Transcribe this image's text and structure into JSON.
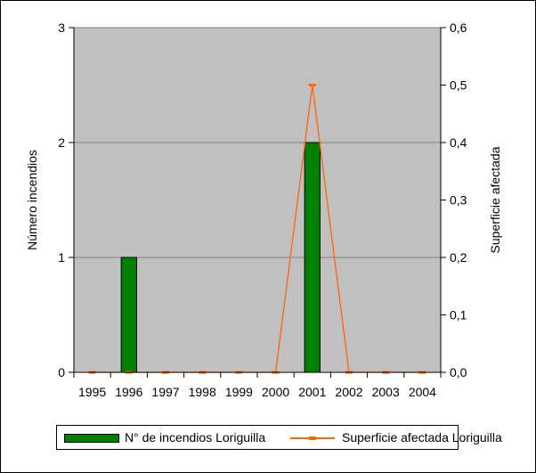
{
  "chart_data": {
    "type": "bar",
    "categories": [
      "1995",
      "1996",
      "1997",
      "1998",
      "1999",
      "2000",
      "2001",
      "2002",
      "2003",
      "2004"
    ],
    "series": [
      {
        "name": "N° de incendios Loriguilla",
        "type": "bar",
        "axis": "left",
        "color": "#008000",
        "values": [
          0,
          1,
          0,
          0,
          0,
          0,
          2,
          0,
          0,
          0
        ]
      },
      {
        "name": "Superficie afectada Loriguilla",
        "type": "line",
        "axis": "right",
        "color": "#ff6600",
        "values": [
          0,
          0,
          0,
          0,
          0,
          0,
          0.5,
          0,
          0,
          0
        ]
      }
    ],
    "ylabel": "Número incendios",
    "y2label": "Superficie afectada",
    "ylim": [
      0,
      3
    ],
    "y2lim": [
      0,
      0.6
    ],
    "yticks": [
      "0",
      "1",
      "2",
      "3"
    ],
    "y2ticks": [
      "0,0",
      "0,1",
      "0,2",
      "0,3",
      "0,4",
      "0,5",
      "0,6"
    ],
    "plot_background": "#c0c0c0",
    "grid": true,
    "legend_position": "bottom"
  }
}
